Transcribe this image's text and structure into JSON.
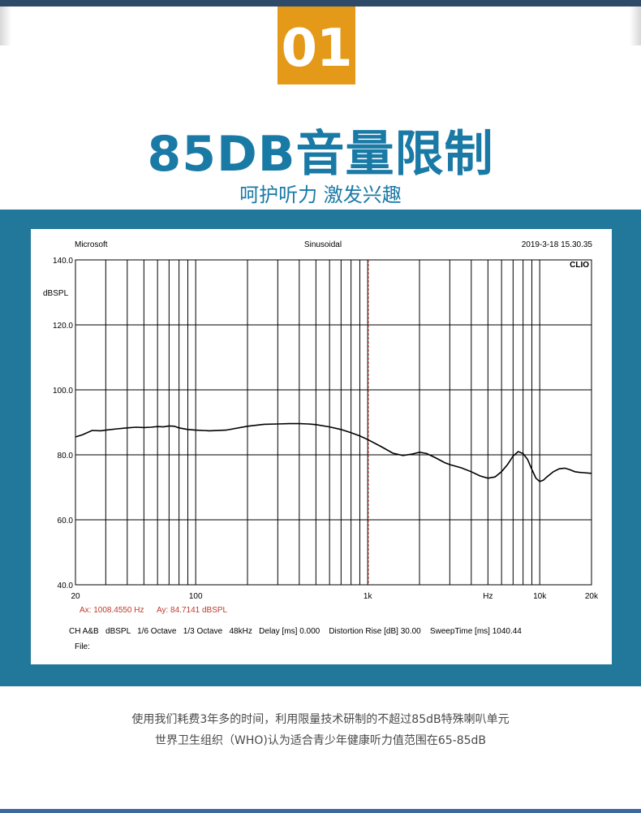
{
  "header": {
    "badge": "01",
    "headline": "85DB音量限制",
    "subline": "呵护听力 激发兴趣"
  },
  "colors": {
    "accent_orange": "#e49a18",
    "accent_blue": "#1a7aa6",
    "band_blue": "#22789a",
    "trace": "#000000",
    "cursor": "#c0392b"
  },
  "chart_data": {
    "type": "line",
    "header_left": "Microsoft",
    "header_center": "Sinusoidal",
    "header_right": "2019-3-18  15.30.35",
    "brand": "CLIO",
    "ylabel": "dBSPL",
    "xscale": "log",
    "xlim": [
      20,
      20000
    ],
    "ylim": [
      40,
      140
    ],
    "yticks": [
      "140.0",
      "120.0",
      "100.0",
      "80.0",
      "60.0",
      "40.0"
    ],
    "xtick_labels": [
      {
        "f": 20,
        "label": "20"
      },
      {
        "f": 100,
        "label": "100"
      },
      {
        "f": 1000,
        "label": "1k"
      },
      {
        "f": 5000,
        "label": "Hz"
      },
      {
        "f": 10000,
        "label": "10k"
      },
      {
        "f": 20000,
        "label": "20k"
      }
    ],
    "cursor_hz": 1008.455,
    "cursor_text_x": "Ax: 1008.4550 Hz",
    "cursor_text_y": "Ay: 84.7141 dBSPL",
    "settings_line": "CH A&B   dBSPL   1/6 Octave   1/3 Octave   48kHz   Delay [ms] 0.000    Distortion Rise [dB] 30.00    SweepTime [ms] 1040.44",
    "file_label": "File:",
    "series": [
      {
        "x": [
          20,
          22,
          25,
          28,
          30,
          35,
          40,
          45,
          50,
          55,
          60,
          65,
          70,
          75,
          80,
          90,
          100,
          120,
          150,
          200,
          250,
          300,
          350,
          400,
          450,
          500,
          600,
          700,
          800,
          900,
          1000,
          1200,
          1400,
          1600,
          1800,
          2000,
          2200,
          2500,
          2800,
          3000,
          3500,
          4000,
          4500,
          5000,
          5500,
          6000,
          6500,
          7000,
          7500,
          8000,
          8500,
          9000,
          9500,
          10000,
          10500,
          11000,
          12000,
          13000,
          14000,
          15000,
          16000,
          17000,
          18000,
          20000
        ],
        "y": [
          85.5,
          86.2,
          87.5,
          87.4,
          87.6,
          88.0,
          88.3,
          88.5,
          88.4,
          88.5,
          88.7,
          88.6,
          88.9,
          88.8,
          88.3,
          87.8,
          87.6,
          87.4,
          87.6,
          88.8,
          89.4,
          89.5,
          89.6,
          89.6,
          89.5,
          89.3,
          88.6,
          87.8,
          86.8,
          85.8,
          84.7,
          82.5,
          80.5,
          79.8,
          80.2,
          80.8,
          80.4,
          79.0,
          77.6,
          77.0,
          76.0,
          74.8,
          73.5,
          72.8,
          73.2,
          74.8,
          77.0,
          79.6,
          81.0,
          80.4,
          78.6,
          75.5,
          72.8,
          71.8,
          72.2,
          73.2,
          74.8,
          75.7,
          75.9,
          75.4,
          74.8,
          74.6,
          74.5,
          74.3
        ]
      }
    ]
  },
  "footer": {
    "line1": "使用我们耗费3年多的时间，利用限量技术研制的不超过85dB特殊喇叭单元",
    "line2": "世界卫生组织（WHO)认为适合青少年健康听力值范围在65-85dB"
  }
}
